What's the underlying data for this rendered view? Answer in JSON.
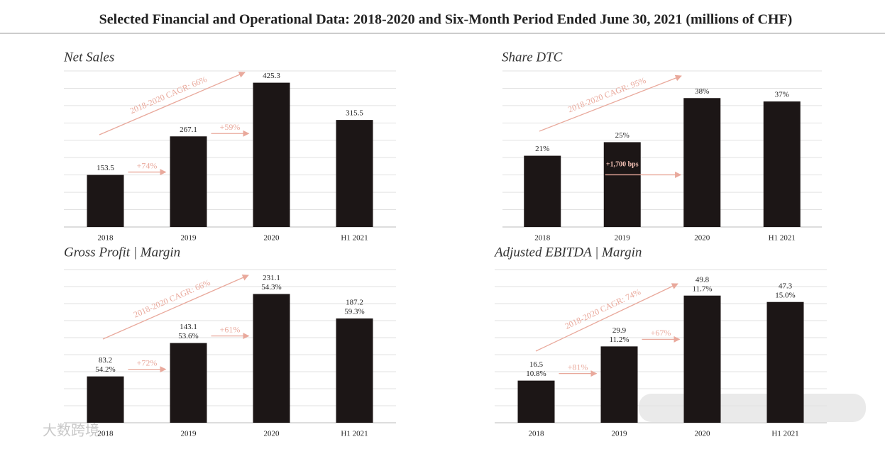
{
  "title": "Selected Financial and Operational Data: 2018-2020 and Six-Month Period Ended June 30, 2021 (millions of CHF)",
  "watermark": "大数跨境",
  "chart_data": [
    {
      "type": "bar",
      "title": "Net Sales",
      "categories": [
        "2018",
        "2019",
        "2020",
        "H1 2021"
      ],
      "values": [
        153.5,
        267.1,
        425.3,
        315.5
      ],
      "color": "#1c1616",
      "ylim": [
        0,
        460
      ],
      "grid": true,
      "cagr_label": "2018-2020 CAGR: 66%",
      "growth_labels": [
        "+74%",
        "+59%"
      ]
    },
    {
      "type": "bar",
      "title": "Share DTC",
      "categories": [
        "2018",
        "2019",
        "2020",
        "H1 2021"
      ],
      "values": [
        21,
        25,
        38,
        37
      ],
      "value_labels": [
        "21%",
        "25%",
        "38%",
        "37%"
      ],
      "color": "#1c1616",
      "ylim": [
        0,
        46
      ],
      "grid": true,
      "cagr_label": "2018-2020 CAGR: 95%",
      "growth_labels": [
        "+1,700 bps"
      ]
    },
    {
      "type": "bar",
      "title": "Gross Profit | Margin",
      "categories": [
        "2018",
        "2019",
        "2020",
        "H1 2021"
      ],
      "values": [
        83.2,
        143.1,
        231.1,
        187.2
      ],
      "margin_labels": [
        "54.2%",
        "53.6%",
        "54.3%",
        "59.3%"
      ],
      "color": "#1c1616",
      "ylim": [
        0,
        275
      ],
      "grid": true,
      "cagr_label": "2018-2020 CAGR: 66%",
      "growth_labels": [
        "+72%",
        "+61%"
      ]
    },
    {
      "type": "bar",
      "title": "Adjusted EBITDA | Margin",
      "categories": [
        "2018",
        "2019",
        "2020",
        "H1 2021"
      ],
      "values": [
        16.5,
        29.9,
        49.8,
        47.3
      ],
      "margin_labels": [
        "10.8%",
        "11.2%",
        "11.7%",
        "15.0%"
      ],
      "color": "#1c1616",
      "ylim": [
        0,
        60
      ],
      "grid": true,
      "cagr_label": "2018-2020 CAGR: 74%",
      "growth_labels": [
        "+81%",
        "+67%"
      ]
    }
  ]
}
